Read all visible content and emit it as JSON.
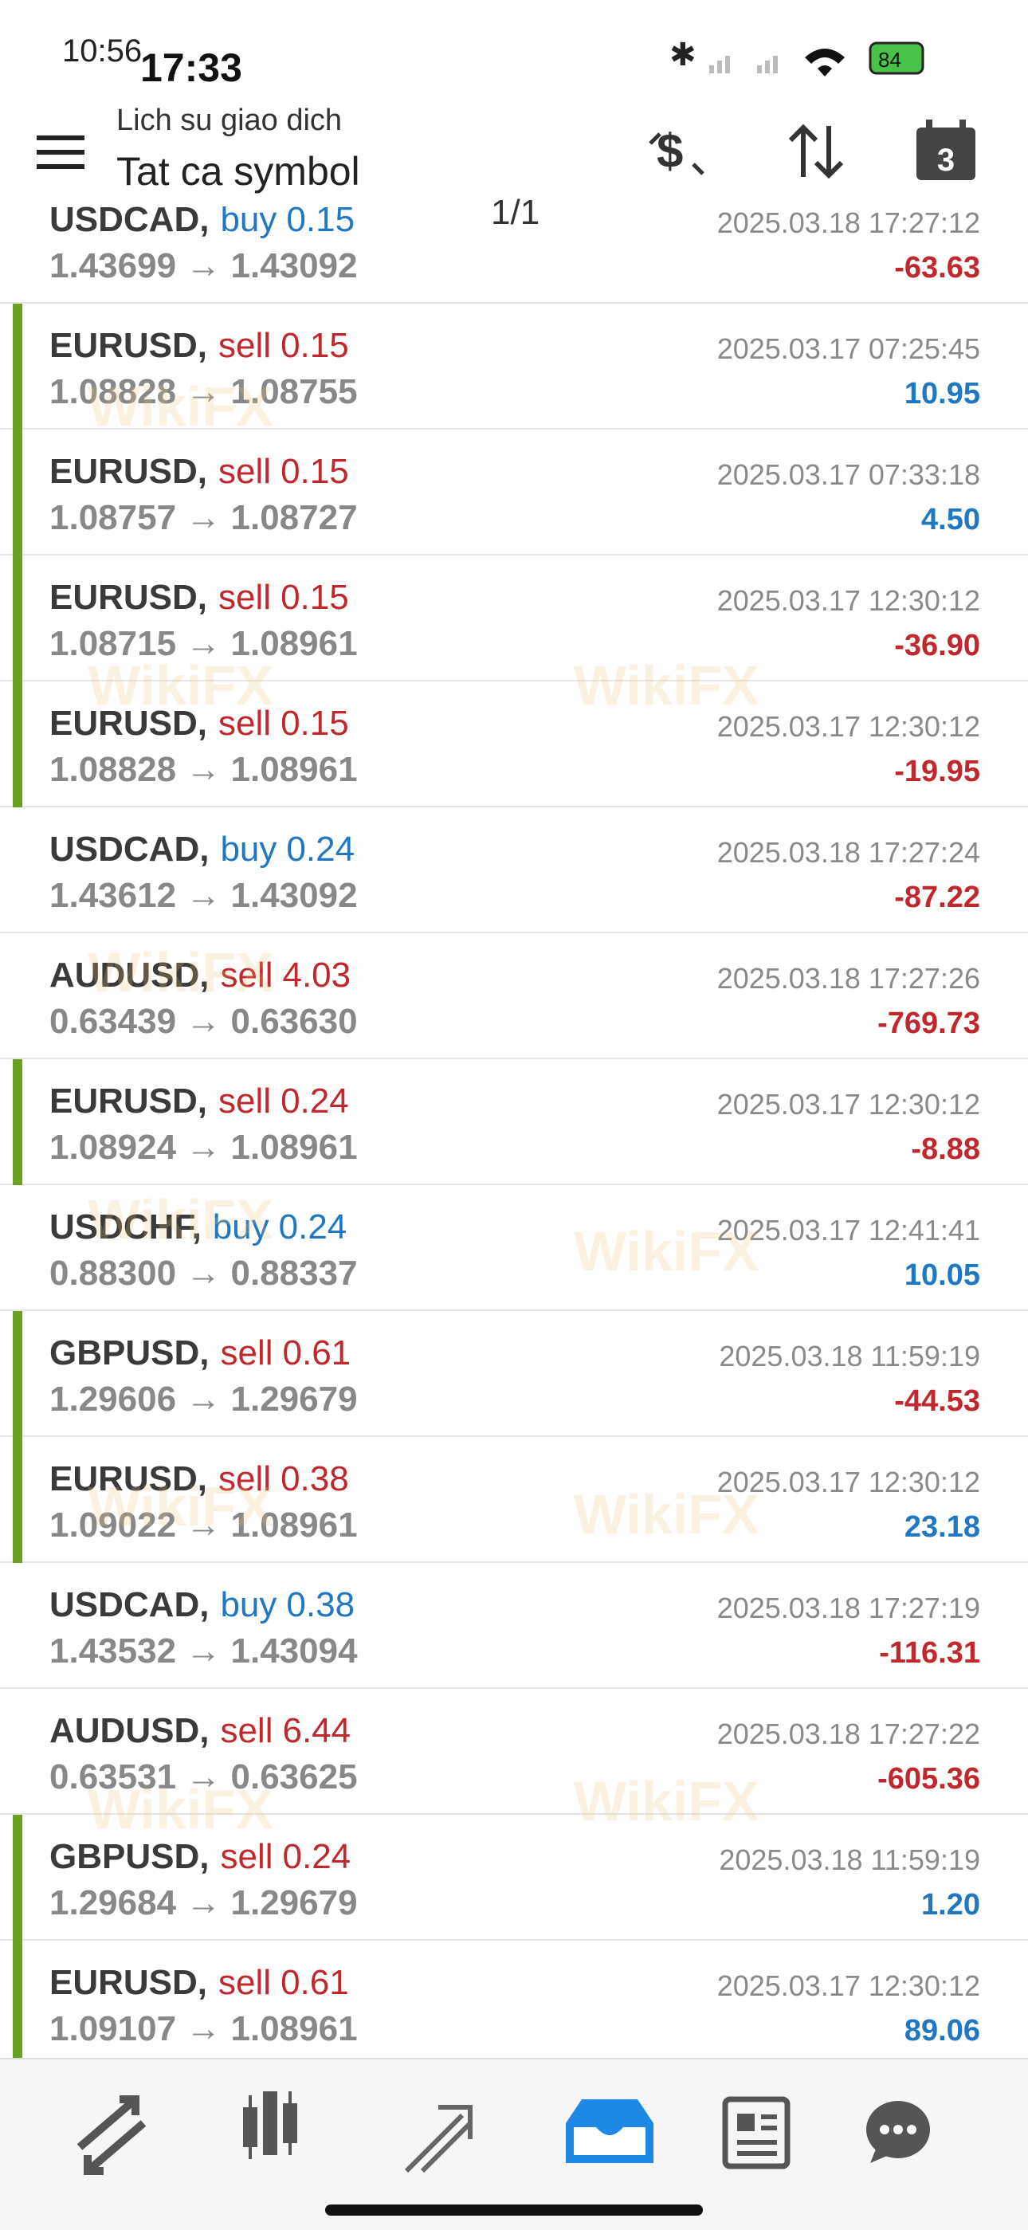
{
  "status_bar": {
    "time_back": "10:56",
    "time_front": "17:33",
    "battery": "84"
  },
  "header": {
    "title": "Lich su giao dich",
    "subtitle": "Tat ca symbol",
    "page_indicator": "1/1",
    "calendar_day": "3"
  },
  "watermark": "WikiFX",
  "trades": [
    {
      "symbol": "USDCAD,",
      "side": "buy",
      "volume": "0.15",
      "prices": "1.43699 → 1.43092",
      "time": "2025.03.18 17:27:12",
      "profit": "-63.63",
      "marked": false
    },
    {
      "symbol": "EURUSD,",
      "side": "sell",
      "volume": "0.15",
      "prices": "1.08828 → 1.08755",
      "time": "2025.03.17 07:25:45",
      "profit": "10.95",
      "marked": true
    },
    {
      "symbol": "EURUSD,",
      "side": "sell",
      "volume": "0.15",
      "prices": "1.08757 → 1.08727",
      "time": "2025.03.17 07:33:18",
      "profit": "4.50",
      "marked": true
    },
    {
      "symbol": "EURUSD,",
      "side": "sell",
      "volume": "0.15",
      "prices": "1.08715 → 1.08961",
      "time": "2025.03.17 12:30:12",
      "profit": "-36.90",
      "marked": true
    },
    {
      "symbol": "EURUSD,",
      "side": "sell",
      "volume": "0.15",
      "prices": "1.08828 → 1.08961",
      "time": "2025.03.17 12:30:12",
      "profit": "-19.95",
      "marked": true
    },
    {
      "symbol": "USDCAD,",
      "side": "buy",
      "volume": "0.24",
      "prices": "1.43612 → 1.43092",
      "time": "2025.03.18 17:27:24",
      "profit": "-87.22",
      "marked": false
    },
    {
      "symbol": "AUDUSD,",
      "side": "sell",
      "volume": "4.03",
      "prices": "0.63439 → 0.63630",
      "time": "2025.03.18 17:27:26",
      "profit": "-769.73",
      "marked": false
    },
    {
      "symbol": "EURUSD,",
      "side": "sell",
      "volume": "0.24",
      "prices": "1.08924 → 1.08961",
      "time": "2025.03.17 12:30:12",
      "profit": "-8.88",
      "marked": true
    },
    {
      "symbol": "USDCHF,",
      "side": "buy",
      "volume": "0.24",
      "prices": "0.88300 → 0.88337",
      "time": "2025.03.17 12:41:41",
      "profit": "10.05",
      "marked": false
    },
    {
      "symbol": "GBPUSD,",
      "side": "sell",
      "volume": "0.61",
      "prices": "1.29606 → 1.29679",
      "time": "2025.03.18 11:59:19",
      "profit": "-44.53",
      "marked": true
    },
    {
      "symbol": "EURUSD,",
      "side": "sell",
      "volume": "0.38",
      "prices": "1.09022 → 1.08961",
      "time": "2025.03.17 12:30:12",
      "profit": "23.18",
      "marked": true
    },
    {
      "symbol": "USDCAD,",
      "side": "buy",
      "volume": "0.38",
      "prices": "1.43532 → 1.43094",
      "time": "2025.03.18 17:27:19",
      "profit": "-116.31",
      "marked": false
    },
    {
      "symbol": "AUDUSD,",
      "side": "sell",
      "volume": "6.44",
      "prices": "0.63531 → 0.63625",
      "time": "2025.03.18 17:27:22",
      "profit": "-605.36",
      "marked": false
    },
    {
      "symbol": "GBPUSD,",
      "side": "sell",
      "volume": "0.24",
      "prices": "1.29684 → 1.29679",
      "time": "2025.03.18 11:59:19",
      "profit": "1.20",
      "marked": true
    },
    {
      "symbol": "EURUSD,",
      "side": "sell",
      "volume": "0.61",
      "prices": "1.09107 → 1.08961",
      "time": "2025.03.17 12:30:12",
      "profit": "89.06",
      "marked": true
    }
  ]
}
